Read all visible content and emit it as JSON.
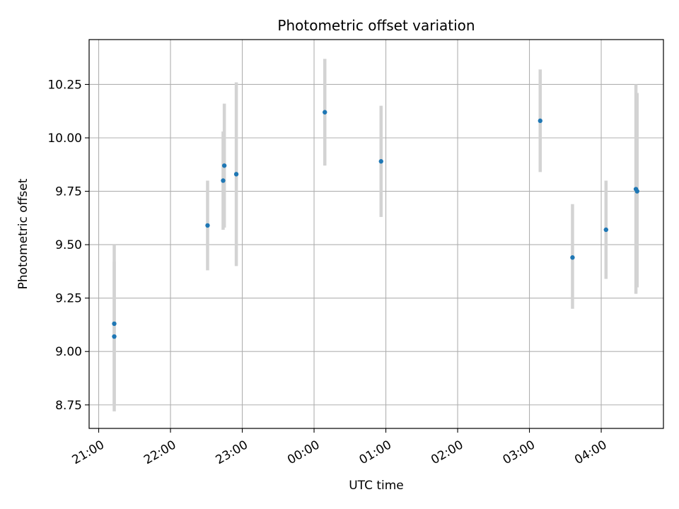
{
  "chart_data": {
    "type": "scatter",
    "title": "Photometric offset variation",
    "xlabel": "UTC time",
    "ylabel": "Photometric offset",
    "x_axis_kind": "time",
    "xlim": [
      "20:52",
      "04:52"
    ],
    "ylim": [
      8.64,
      10.46
    ],
    "grid": true,
    "x_ticks": [
      "21:00",
      "22:00",
      "23:00",
      "00:00",
      "01:00",
      "02:00",
      "03:00",
      "04:00"
    ],
    "y_ticks": [
      "8.75",
      "9.00",
      "9.25",
      "9.50",
      "9.75",
      "10.00",
      "10.25"
    ],
    "x_tick_rotation_deg": 30,
    "colors": {
      "points": "#1f77b4",
      "error_bars": "#d3d3d3",
      "grid": "#b0b0b0"
    },
    "points": [
      {
        "time": "21:13",
        "y": 9.13,
        "y_low": 8.75,
        "y_high": 9.5
      },
      {
        "time": "21:13",
        "y": 9.07,
        "y_low": 8.72,
        "y_high": 9.42
      },
      {
        "time": "22:31",
        "y": 9.59,
        "y_low": 9.38,
        "y_high": 9.8
      },
      {
        "time": "22:44",
        "y": 9.8,
        "y_low": 9.57,
        "y_high": 10.03
      },
      {
        "time": "22:45",
        "y": 9.87,
        "y_low": 9.58,
        "y_high": 10.16
      },
      {
        "time": "22:55",
        "y": 9.83,
        "y_low": 9.4,
        "y_high": 10.26
      },
      {
        "time": "00:09",
        "y": 10.12,
        "y_low": 9.87,
        "y_high": 10.37
      },
      {
        "time": "00:56",
        "y": 9.89,
        "y_low": 9.63,
        "y_high": 10.15
      },
      {
        "time": "03:09",
        "y": 10.08,
        "y_low": 9.84,
        "y_high": 10.32
      },
      {
        "time": "03:36",
        "y": 9.44,
        "y_low": 9.2,
        "y_high": 9.69
      },
      {
        "time": "04:04",
        "y": 9.57,
        "y_low": 9.34,
        "y_high": 9.8
      },
      {
        "time": "04:29",
        "y": 9.76,
        "y_low": 9.27,
        "y_high": 10.25
      },
      {
        "time": "04:30",
        "y": 9.75,
        "y_low": 9.3,
        "y_high": 10.21
      }
    ]
  }
}
